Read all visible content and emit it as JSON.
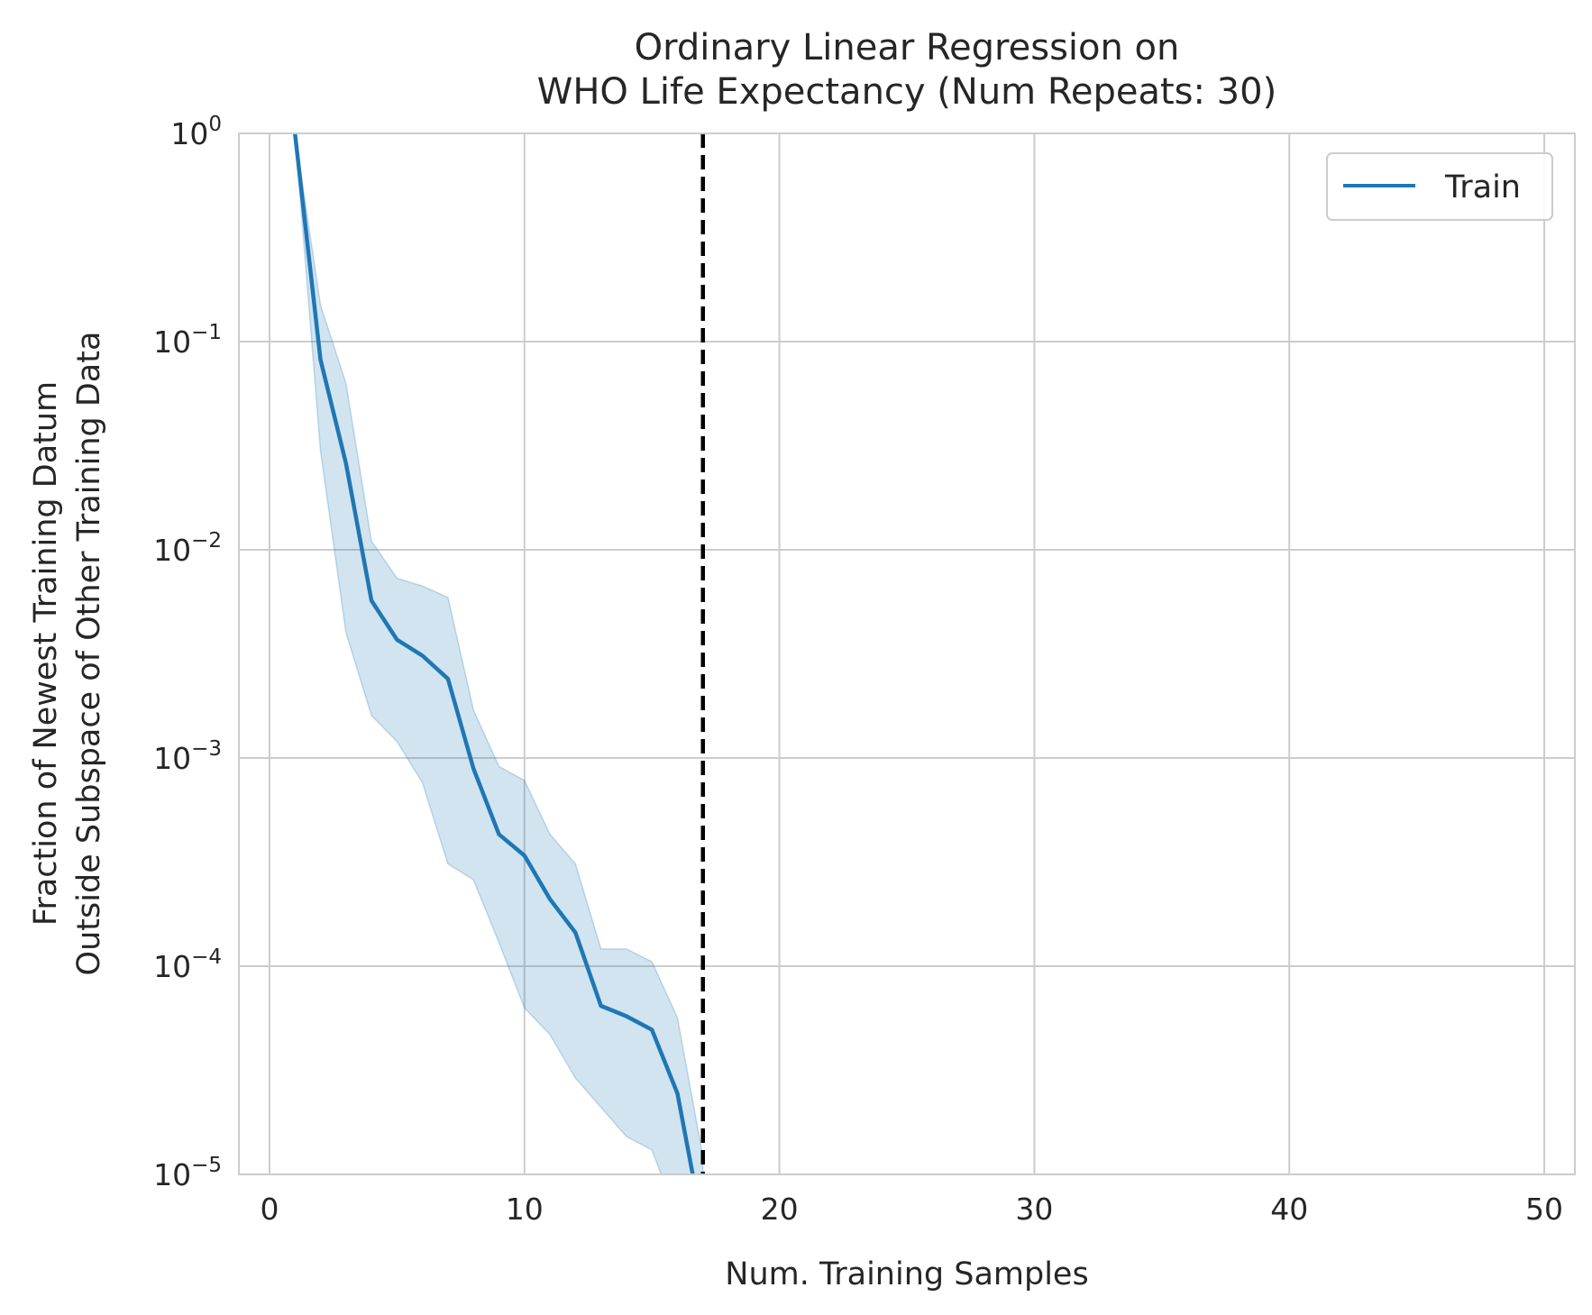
{
  "chart_data": {
    "type": "line",
    "title_lines": [
      "Ordinary Linear Regression on",
      "WHO Life Expectancy (Num Repeats: 30)"
    ],
    "xlabel": "Num. Training Samples",
    "ylabel_lines": [
      "Fraction of Newest Training Datum",
      "Outside Subspace of Other Training Data"
    ],
    "xlim": [
      -1.2,
      51.2
    ],
    "ylim": [
      1e-05,
      1
    ],
    "yscale": "log",
    "grid": true,
    "legend_position": "top-right",
    "x_ticks": [
      {
        "value": 0,
        "label": "0"
      },
      {
        "value": 10,
        "label": "10"
      },
      {
        "value": 20,
        "label": "20"
      },
      {
        "value": 30,
        "label": "30"
      },
      {
        "value": 40,
        "label": "40"
      },
      {
        "value": 50,
        "label": "50"
      }
    ],
    "y_ticks": [
      {
        "value": 1,
        "base": "10",
        "exp": "0"
      },
      {
        "value": 0.1,
        "base": "10",
        "exp": "−1"
      },
      {
        "value": 0.01,
        "base": "10",
        "exp": "−2"
      },
      {
        "value": 0.001,
        "base": "10",
        "exp": "−3"
      },
      {
        "value": 0.0001,
        "base": "10",
        "exp": "−4"
      },
      {
        "value": 1e-05,
        "base": "10",
        "exp": "−5"
      }
    ],
    "vline": {
      "x": 17,
      "style": "dashed",
      "color": "#000000"
    },
    "series": [
      {
        "name": "Train",
        "color": "#1f77b4",
        "band_color": "#1f77b4",
        "band_opacity": 0.2,
        "x": [
          1,
          2,
          3,
          4,
          5,
          6,
          7,
          8,
          9,
          10,
          11,
          12,
          13,
          14,
          15,
          16,
          17
        ],
        "y": [
          1.0,
          0.082,
          0.026,
          0.0057,
          0.0037,
          0.0031,
          0.0024,
          0.00089,
          0.00043,
          0.00034,
          0.00021,
          0.000145,
          6.45e-05,
          5.75e-05,
          4.95e-05,
          2.45e-05,
          5.5e-06
        ],
        "lower": [
          1.0,
          0.03,
          0.004,
          0.0016,
          0.0012,
          0.00076,
          0.00031,
          0.00026,
          0.00013,
          6.3e-05,
          4.7e-05,
          2.9e-05,
          2.1e-05,
          1.52e-05,
          1.31e-05,
          6.2e-06,
          3.1e-06
        ],
        "upper": [
          1.0,
          0.15,
          0.063,
          0.011,
          0.0073,
          0.0067,
          0.0059,
          0.0017,
          0.00091,
          0.00078,
          0.00043,
          0.00031,
          0.000121,
          0.000121,
          0.000105,
          5.65e-05,
          1.22e-05
        ]
      }
    ]
  }
}
